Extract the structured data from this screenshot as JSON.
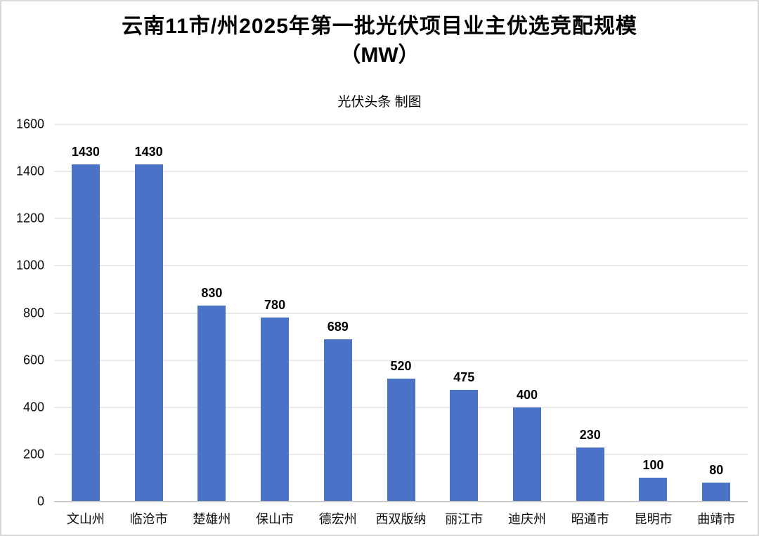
{
  "page": {
    "background": "#ffffff",
    "border_color": "#d9d9d9"
  },
  "chart": {
    "title_line1": "云南11市/州2025年第一批光伏项目业主优选竞配规模",
    "title_line2": "（MW）",
    "subtitle": "光伏头条 制图"
  },
  "chart_data": {
    "type": "bar",
    "title": "云南11市/州2025年第一批光伏项目业主优选竞配规模（MW）",
    "subtitle": "光伏头条 制图",
    "categories": [
      "文山州",
      "临沧市",
      "楚雄州",
      "保山市",
      "德宏州",
      "西双版纳",
      "丽江市",
      "迪庆州",
      "昭通市",
      "昆明市",
      "曲靖市"
    ],
    "values": [
      1430,
      1430,
      830,
      780,
      689,
      520,
      475,
      400,
      230,
      100,
      80
    ],
    "value_labels": [
      "1430",
      "1430",
      "830",
      "780",
      "689",
      "520",
      "475",
      "400",
      "230",
      "100",
      "80"
    ],
    "xlabel": "",
    "ylabel": "",
    "ylim": [
      0,
      1600
    ],
    "ytick_step": 200,
    "ytick_labels": [
      "0",
      "200",
      "400",
      "600",
      "800",
      "1000",
      "1200",
      "1400",
      "1600"
    ],
    "grid": true,
    "legend": "none",
    "bar_color": "#4A73C8",
    "gridline_color": "#eaeaea",
    "axis_line_color": "#c9c9c9",
    "text_color": "#000000"
  }
}
